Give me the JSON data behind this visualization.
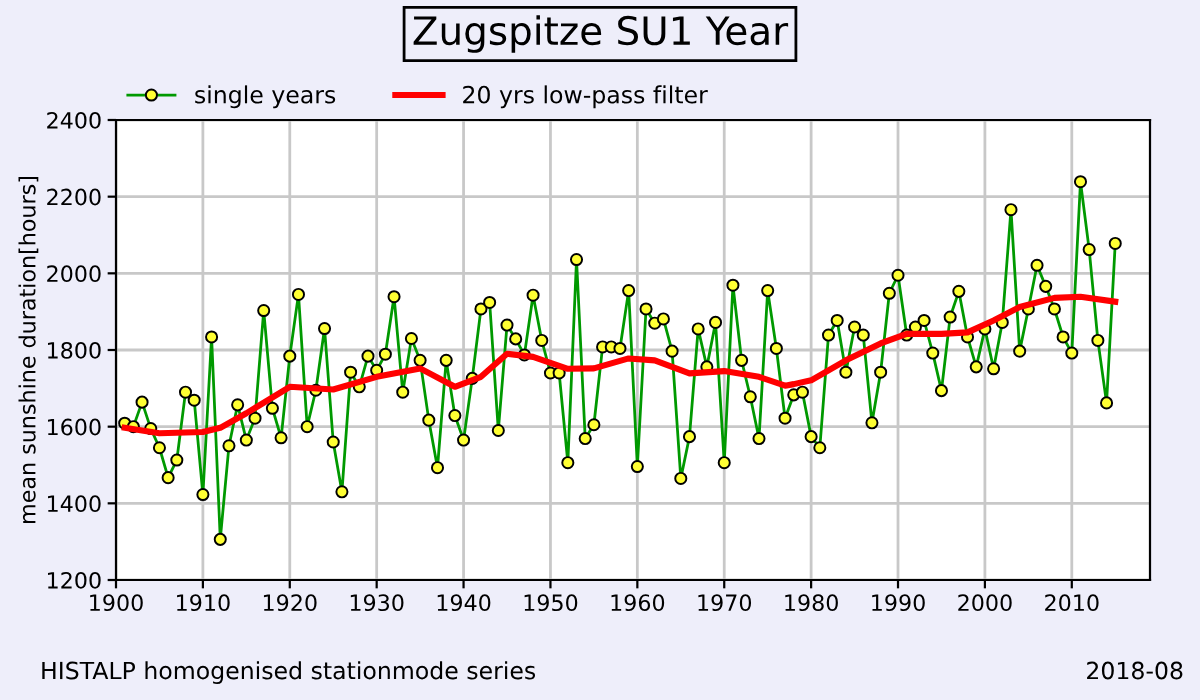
{
  "chart_data": {
    "type": "line",
    "title": "Zugspitze SU1 Year",
    "ylabel": "mean sunshine duration[hours]",
    "annotations": [
      "HISTALP homogenised stationmode series",
      "2018-08"
    ],
    "xlim": [
      1900,
      2019
    ],
    "xticks": [
      1900,
      1910,
      1920,
      1930,
      1940,
      1950,
      1960,
      1970,
      1980,
      1990,
      2000,
      2010
    ],
    "ylim": [
      1200,
      2400
    ],
    "yticks": [
      1200,
      1400,
      1600,
      1800,
      2000,
      2200,
      2400
    ],
    "grid": true,
    "legend": "top",
    "line_style": "solid",
    "series": [
      {
        "name": "single years",
        "color": "#009900",
        "marker": "circle",
        "x": [
          1901,
          1902,
          1903,
          1904,
          1905,
          1906,
          1907,
          1908,
          1909,
          1910,
          1911,
          1912,
          1913,
          1914,
          1915,
          1916,
          1917,
          1918,
          1919,
          1920,
          1921,
          1922,
          1923,
          1924,
          1925,
          1926,
          1927,
          1928,
          1929,
          1930,
          1931,
          1932,
          1933,
          1934,
          1935,
          1936,
          1937,
          1938,
          1939,
          1940,
          1941,
          1942,
          1943,
          1944,
          1945,
          1946,
          1947,
          1948,
          1949,
          1950,
          1951,
          1952,
          1953,
          1954,
          1955,
          1956,
          1957,
          1958,
          1959,
          1960,
          1961,
          1962,
          1963,
          1964,
          1965,
          1966,
          1967,
          1968,
          1969,
          1970,
          1971,
          1972,
          1973,
          1974,
          1975,
          1976,
          1977,
          1978,
          1979,
          1980,
          1981,
          1982,
          1983,
          1984,
          1985,
          1986,
          1987,
          1988,
          1989,
          1990,
          1991,
          1992,
          1993,
          1994,
          1995,
          1996,
          1997,
          1998,
          1999,
          2000,
          2001,
          2002,
          2003,
          2004,
          2005,
          2006,
          2007,
          2008,
          2009,
          2010,
          2011,
          2012,
          2013,
          2014,
          2015
        ],
        "values": [
          1609,
          1600,
          1664,
          1595,
          1545,
          1467,
          1513,
          1690,
          1669,
          1423,
          1834,
          1306,
          1550,
          1657,
          1565,
          1622,
          1903,
          1648,
          1571,
          1784,
          1945,
          1600,
          1695,
          1856,
          1560,
          1430,
          1742,
          1704,
          1784,
          1747,
          1789,
          1939,
          1690,
          1830,
          1773,
          1617,
          1493,
          1773,
          1629,
          1565,
          1726,
          1907,
          1924,
          1590,
          1865,
          1829,
          1787,
          1943,
          1825,
          1740,
          1740,
          1506,
          2036,
          1569,
          1605,
          1808,
          1808,
          1804,
          1955,
          1496,
          1907,
          1870,
          1881,
          1797,
          1465,
          1574,
          1855,
          1756,
          1872,
          1506,
          1969,
          1773,
          1678,
          1569,
          1955,
          1804,
          1622,
          1683,
          1690,
          1574,
          1545,
          1839,
          1877,
          1742,
          1860,
          1839,
          1610,
          1742,
          1948,
          1995,
          1839,
          1860,
          1877,
          1792,
          1694,
          1886,
          1953,
          1834,
          1756,
          1855,
          1751,
          1872,
          2166,
          1797,
          1907,
          2021,
          1966,
          1907,
          1834,
          1792,
          2239,
          2062,
          1825,
          1662,
          2078
        ]
      },
      {
        "name": "20 yrs low-pass filter",
        "color": "#ff0000",
        "marker": "none",
        "x": [
          1901,
          1905,
          1910,
          1912,
          1915,
          1920,
          1925,
          1930,
          1935,
          1939,
          1942,
          1945,
          1948,
          1952,
          1955,
          1959,
          1962,
          1966,
          1970,
          1974,
          1977,
          1978,
          1980,
          1984,
          1988,
          1991,
          1995,
          1998,
          2001,
          2004,
          2008,
          2011,
          2015
        ],
        "values": [
          1597,
          1583,
          1586,
          1597,
          1635,
          1704,
          1697,
          1730,
          1752,
          1704,
          1730,
          1790,
          1782,
          1751,
          1752,
          1778,
          1773,
          1739,
          1745,
          1730,
          1707,
          1711,
          1721,
          1773,
          1817,
          1842,
          1842,
          1846,
          1877,
          1912,
          1936,
          1939,
          1926
        ]
      }
    ]
  }
}
